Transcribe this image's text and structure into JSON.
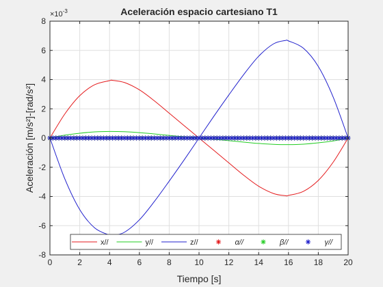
{
  "chart_data": {
    "type": "line",
    "title": "Aceleración espacio cartesiano T1",
    "xlabel": "Tiempo [s]",
    "ylabel": "Aceleración [m/s²]-[rad/s²]",
    "exponent_label": "×10",
    "exponent_power": "-3",
    "xlim": [
      0,
      20
    ],
    "ylim": [
      -8,
      8
    ],
    "x_ticks": [
      "0",
      "2",
      "4",
      "6",
      "8",
      "10",
      "12",
      "14",
      "16",
      "18",
      "20"
    ],
    "y_ticks": [
      "-8",
      "-6",
      "-4",
      "-2",
      "0",
      "2",
      "4",
      "6",
      "8"
    ],
    "grid": true,
    "legend_placement": "bottom",
    "series": [
      {
        "name": "x//",
        "color": "#e41a1c",
        "style": "line",
        "x": [
          0,
          1,
          2,
          3,
          4,
          4.2,
          5,
          6,
          7,
          8,
          9,
          10,
          11,
          12,
          13,
          14,
          15,
          15.8,
          16,
          17,
          18,
          19,
          20
        ],
        "y": [
          0,
          1.65,
          2.9,
          3.65,
          3.93,
          3.95,
          3.8,
          3.3,
          2.55,
          1.7,
          0.85,
          0,
          -0.85,
          -1.7,
          -2.55,
          -3.3,
          -3.8,
          -3.95,
          -3.93,
          -3.65,
          -2.9,
          -1.65,
          0
        ]
      },
      {
        "name": "y//",
        "color": "#22cc22",
        "style": "line",
        "x": [
          0,
          1,
          2,
          3,
          4,
          5,
          6,
          7,
          8,
          9,
          10,
          11,
          12,
          13,
          14,
          15,
          16,
          17,
          18,
          19,
          20
        ],
        "y": [
          0,
          0.2,
          0.33,
          0.42,
          0.45,
          0.43,
          0.37,
          0.28,
          0.18,
          0.09,
          0,
          -0.09,
          -0.18,
          -0.28,
          -0.37,
          -0.43,
          -0.45,
          -0.42,
          -0.33,
          -0.2,
          0
        ]
      },
      {
        "name": "z//",
        "color": "#1f1fcc",
        "style": "line",
        "x": [
          0,
          1,
          2,
          3,
          4,
          4.2,
          5,
          6,
          7,
          8,
          9,
          10,
          11,
          12,
          13,
          14,
          15,
          15.8,
          16,
          17,
          18,
          19,
          20
        ],
        "y": [
          0,
          -2.8,
          -4.9,
          -6.15,
          -6.65,
          -6.68,
          -6.45,
          -5.6,
          -4.35,
          -2.95,
          -1.5,
          0,
          1.5,
          2.95,
          4.35,
          5.6,
          6.45,
          6.68,
          6.65,
          6.15,
          4.9,
          2.8,
          0
        ]
      },
      {
        "name": "α//",
        "color": "#e41a1c",
        "style": "marker",
        "x": [
          0,
          20
        ],
        "y": [
          0,
          0
        ]
      },
      {
        "name": "β//",
        "color": "#22cc22",
        "style": "marker",
        "x": [
          0,
          20
        ],
        "y": [
          0,
          0
        ]
      },
      {
        "name": "γ//",
        "color": "#1f1fcc",
        "style": "marker",
        "marker_count": 101,
        "x": [
          0,
          20
        ],
        "y": [
          0,
          0
        ]
      }
    ]
  }
}
